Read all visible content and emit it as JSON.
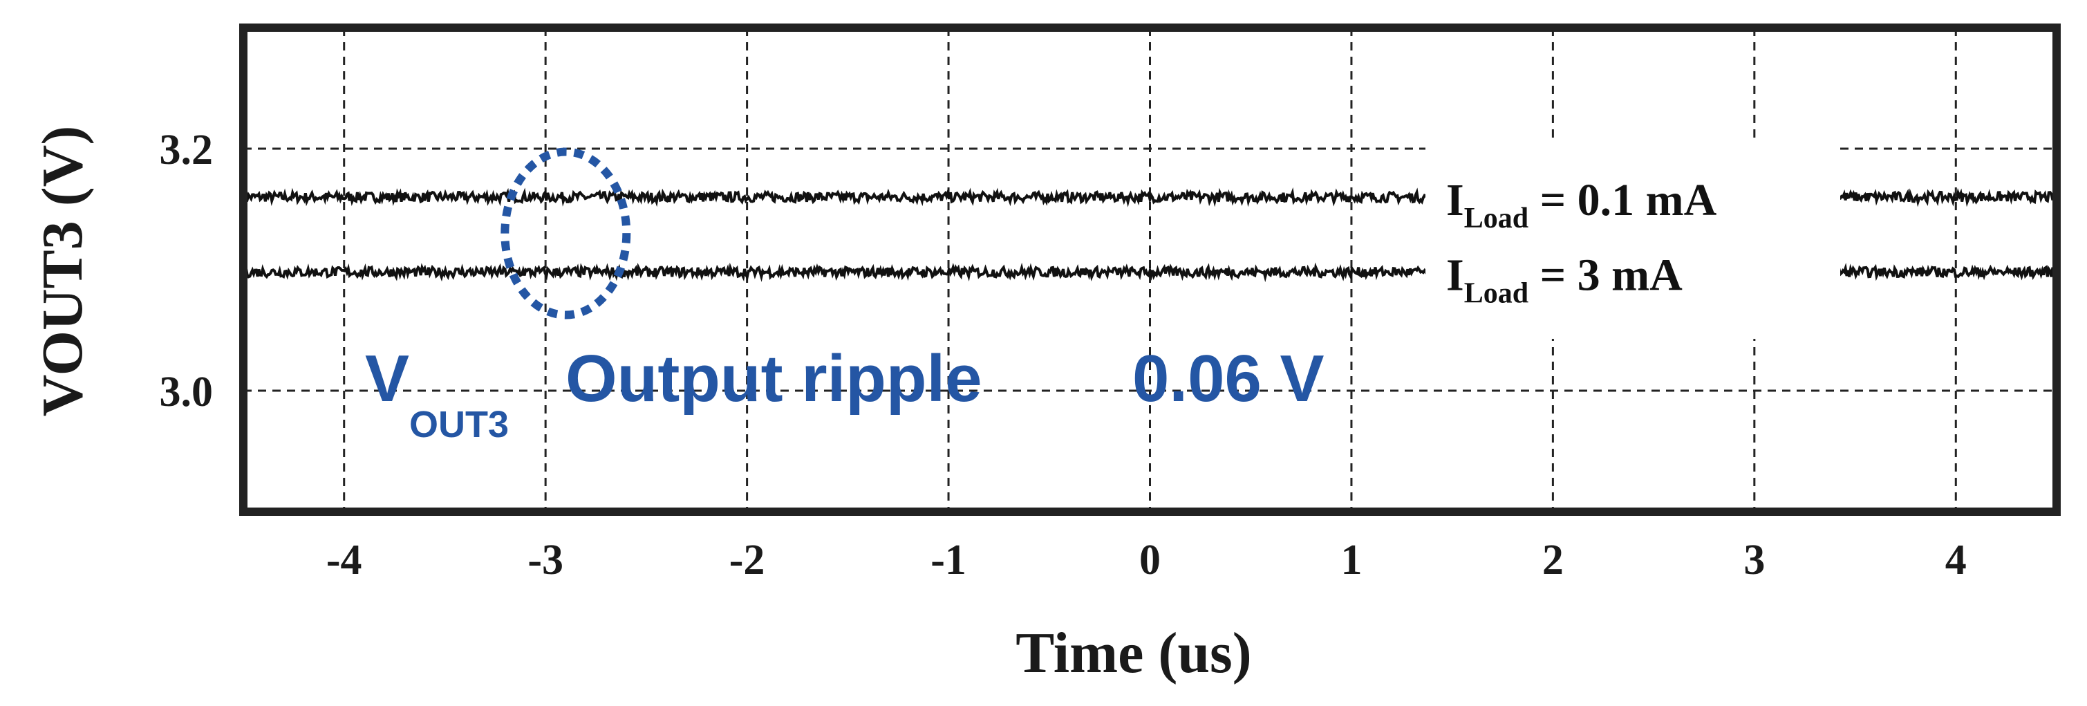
{
  "chart_data": {
    "type": "line",
    "xlabel": "Time (us)",
    "ylabel": "VOUT3 (V)",
    "xlim": [
      -4.5,
      4.5
    ],
    "ylim": [
      2.9,
      3.3
    ],
    "x_ticks": [
      -4,
      -3,
      -2,
      -1,
      0,
      1,
      2,
      3,
      4
    ],
    "x_tick_labels": [
      "-4",
      "-3",
      "-2",
      "-1",
      "0",
      "1",
      "2",
      "3",
      "4"
    ],
    "y_ticks": [
      3.0,
      3.2
    ],
    "y_tick_labels": [
      "3.0",
      "3.2"
    ],
    "grid": true,
    "legend_placement": "right",
    "series": [
      {
        "name_main": "I",
        "name_sub": "Load",
        "name_rest": " = 0.1 mA",
        "level": 3.16,
        "noise": 0.004,
        "color": "#111111"
      },
      {
        "name_main": "I",
        "name_sub": "Load",
        "name_rest": " = 3 mA",
        "level": 3.098,
        "noise": 0.004,
        "color": "#111111"
      }
    ],
    "annotation": {
      "v_main": "V",
      "v_sub": "OUT3",
      "text": "Output ripple",
      "value": "0.06 V",
      "color": "#2456a4",
      "circle_x": -2.9,
      "circle_y": 3.13
    }
  }
}
